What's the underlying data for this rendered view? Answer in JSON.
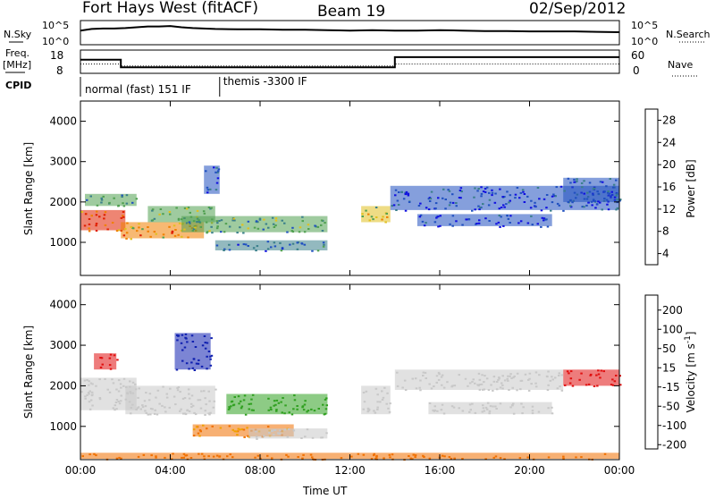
{
  "header": {
    "station": "Fort Hays West (fitACF)",
    "beam": "Beam 19",
    "date": "02/Sep/2012"
  },
  "top_strips": {
    "nsky_label": "N.Sky",
    "nsky_ticks": [
      "10^5",
      "10^0"
    ],
    "nsearch_label": "N.Search",
    "nsearch_ticks": [
      "10^5",
      "10^0"
    ],
    "freq_label_1": "Freq.",
    "freq_label_2": "[MHz]",
    "freq_ticks": [
      "18",
      "8"
    ],
    "nave_label": "Nave",
    "nave_ticks": [
      "60",
      "0"
    ],
    "cpid_label": "CPID",
    "cpid_segments": [
      {
        "start_hour": 0.0,
        "label": "normal (fast) 151 IF"
      },
      {
        "start_hour": 6.2,
        "label": "themis -3300 IF"
      }
    ]
  },
  "chart_data": [
    {
      "type": "line",
      "title": "",
      "series": [
        {
          "name": "N.Sky",
          "x_hours": [
            0,
            0.5,
            1,
            1.5,
            2,
            2.5,
            3,
            3.5,
            4,
            4.5,
            5,
            6,
            7,
            8,
            9,
            10,
            11,
            12,
            13,
            14,
            15,
            16,
            17,
            18,
            19,
            20,
            21,
            22,
            23,
            24
          ],
          "values_log10": [
            3.0,
            3.4,
            3.5,
            3.5,
            3.6,
            3.8,
            4.0,
            4.0,
            4.1,
            3.8,
            3.6,
            3.4,
            3.3,
            3.3,
            3.2,
            3.2,
            3.1,
            3.0,
            3.1,
            3.0,
            3.0,
            3.1,
            3.0,
            2.9,
            2.9,
            2.8,
            2.8,
            2.8,
            2.7,
            2.6
          ]
        }
      ],
      "ylim": [
        0,
        5
      ]
    },
    {
      "type": "line",
      "title": "",
      "series": [
        {
          "name": "Freq.",
          "x_hours": [
            0,
            1.8,
            1.8,
            14.0,
            14.0,
            24
          ],
          "values": [
            14,
            14,
            10.2,
            10.2,
            15.3,
            15.3
          ]
        },
        {
          "name": "Nave",
          "x_hours": [
            0,
            1.8,
            1.8,
            14.0,
            14.0,
            24
          ],
          "values": [
            23,
            23,
            17,
            17,
            23,
            23
          ]
        }
      ],
      "ylim_freq": [
        8,
        18
      ],
      "ylim_nave": [
        0,
        60
      ]
    },
    {
      "type": "heatmap",
      "title": "",
      "ylabel": "Slant Range [km]",
      "colorbar_label": "Power [dB]",
      "colorbar_ticks": [
        "4",
        "8",
        "12",
        "16",
        "20",
        "24",
        "28"
      ],
      "colorbar_colors": [
        "#1010e0",
        "#2050c0",
        "#3a7f8a",
        "#50a050",
        "#e0c020",
        "#f08000",
        "#e02000"
      ],
      "xlim_hours": [
        0,
        24
      ],
      "ylim_km": [
        180,
        4500
      ],
      "y_ticks": [
        "1000",
        "2000",
        "3000",
        "4000"
      ],
      "regions": [
        {
          "t0": 0.0,
          "t1": 2.0,
          "r0": 1300,
          "r1": 1800,
          "value": 26
        },
        {
          "t0": 0.2,
          "t1": 2.5,
          "r0": 1900,
          "r1": 2200,
          "value": 14
        },
        {
          "t0": 1.8,
          "t1": 5.5,
          "r0": 1100,
          "r1": 1500,
          "value": 22
        },
        {
          "t0": 3.0,
          "t1": 6.0,
          "r0": 1500,
          "r1": 1900,
          "value": 16
        },
        {
          "t0": 4.5,
          "t1": 11.0,
          "r0": 1250,
          "r1": 1650,
          "value": 14
        },
        {
          "t0": 6.0,
          "t1": 11.0,
          "r0": 800,
          "r1": 1050,
          "value": 10
        },
        {
          "t0": 5.5,
          "t1": 6.2,
          "r0": 2200,
          "r1": 2900,
          "value": 9
        },
        {
          "t0": 12.5,
          "t1": 13.8,
          "r0": 1500,
          "r1": 1900,
          "value": 18
        },
        {
          "t0": 13.8,
          "t1": 24.0,
          "r0": 1800,
          "r1": 2400,
          "value": 7
        },
        {
          "t0": 15.0,
          "t1": 21.0,
          "r0": 1400,
          "r1": 1700,
          "value": 6
        },
        {
          "t0": 21.5,
          "t1": 24.0,
          "r0": 2000,
          "r1": 2600,
          "value": 9
        }
      ]
    },
    {
      "type": "heatmap",
      "title": "",
      "xlabel": "Time UT",
      "ylabel": "Slant Range [km]",
      "colorbar_label": "Velocity [m s^-1]",
      "colorbar_ticks": [
        "200",
        "100",
        "50",
        "15",
        "-15",
        "-50",
        "-100",
        "-200"
      ],
      "colorbar_colors": [
        "#1020b0",
        "#2060e0",
        "#30a020",
        "#80d040",
        "#c8c8c8",
        "#f0a000",
        "#f07000",
        "#e01010"
      ],
      "xlim_hours": [
        0,
        24
      ],
      "x_ticks": [
        "00:00",
        "04:00",
        "08:00",
        "12:00",
        "16:00",
        "20:00",
        "00:00"
      ],
      "ylim_km": [
        180,
        4500
      ],
      "y_ticks": [
        "1000",
        "2000",
        "3000",
        "4000"
      ],
      "regions": [
        {
          "t0": 0.0,
          "t1": 2.5,
          "r0": 1400,
          "r1": 2200,
          "value": 0
        },
        {
          "t0": 0.6,
          "t1": 1.6,
          "r0": 2400,
          "r1": 2800,
          "value": -200
        },
        {
          "t0": 2.0,
          "t1": 6.0,
          "r0": 1300,
          "r1": 2000,
          "value": 0
        },
        {
          "t0": 4.2,
          "t1": 5.8,
          "r0": 2400,
          "r1": 3300,
          "value": 200
        },
        {
          "t0": 6.5,
          "t1": 11.0,
          "r0": 1300,
          "r1": 1800,
          "value": 40
        },
        {
          "t0": 5.0,
          "t1": 9.5,
          "r0": 750,
          "r1": 1050,
          "value": -50
        },
        {
          "t0": 7.5,
          "t1": 11.0,
          "r0": 700,
          "r1": 950,
          "value": 0
        },
        {
          "t0": 12.5,
          "t1": 13.8,
          "r0": 1300,
          "r1": 2000,
          "value": 0
        },
        {
          "t0": 14.0,
          "t1": 21.5,
          "r0": 1900,
          "r1": 2400,
          "value": 0
        },
        {
          "t0": 15.5,
          "t1": 21.0,
          "r0": 1300,
          "r1": 1600,
          "value": 0
        },
        {
          "t0": 21.5,
          "t1": 24.0,
          "r0": 2000,
          "r1": 2400,
          "value": -150
        },
        {
          "t0": 0.0,
          "t1": 24.0,
          "r0": 200,
          "r1": 350,
          "value": -60
        }
      ]
    }
  ]
}
